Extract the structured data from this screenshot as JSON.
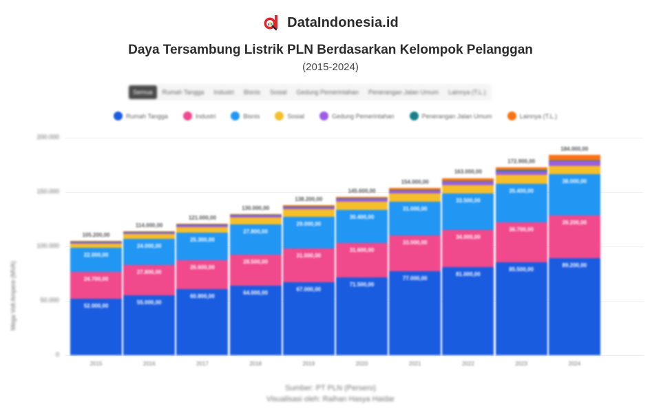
{
  "brand": {
    "name": "DataIndonesia.id",
    "logo_color": "#e3262b"
  },
  "header": {
    "title": "Daya Tersambung Listrik PLN Berdasarkan Kelompok Pelanggan",
    "subtitle": "(2015-2024)"
  },
  "tabs": [
    {
      "label": "Semua",
      "active": true
    },
    {
      "label": "Rumah Tangga",
      "active": false
    },
    {
      "label": "Industri",
      "active": false
    },
    {
      "label": "Bisnis",
      "active": false
    },
    {
      "label": "Sosial",
      "active": false
    },
    {
      "label": "Gedung Pemerintahan",
      "active": false
    },
    {
      "label": "Penerangan Jalan Umum",
      "active": false
    },
    {
      "label": "Lainnya (T.L.)",
      "active": false
    }
  ],
  "footer": {
    "source": "Sumber: PT PLN (Persero)",
    "credit": "Visualisasi oleh: Raihan Hasya Haidar"
  },
  "chart_data": {
    "type": "bar",
    "stacked": true,
    "title": "Daya Tersambung Listrik PLN Berdasarkan Kelompok Pelanggan",
    "subtitle": "(2015-2024)",
    "xlabel": "",
    "ylabel": "Mega Volt Ampere (MVA)",
    "ylim": [
      0,
      200000
    ],
    "yticks": [
      "0",
      "50.000",
      "100.000",
      "150.000",
      "200.000"
    ],
    "grid": true,
    "legend_position": "top",
    "categories": [
      "2015",
      "2016",
      "2017",
      "2018",
      "2019",
      "2020",
      "2021",
      "2022",
      "2023",
      "2024"
    ],
    "series": [
      {
        "name": "Rumah Tangga",
        "color": "#1a5ce0",
        "values": [
          52000,
          55000,
          60800,
          64000,
          67000,
          71500,
          77000,
          81000,
          85500,
          89200
        ]
      },
      {
        "name": "Industri",
        "color": "#f0498c",
        "values": [
          24700,
          27800,
          26600,
          28500,
          31000,
          31600,
          33000,
          34000,
          36700,
          39200
        ]
      },
      {
        "name": "Bisnis",
        "color": "#2196f3",
        "values": [
          22000,
          24000,
          25300,
          27800,
          29000,
          30400,
          31000,
          33500,
          35400,
          38000
        ]
      },
      {
        "name": "Sosial",
        "color": "#f5bf2a",
        "values": [
          4000,
          4400,
          5000,
          6000,
          7000,
          7500,
          7500,
          8000,
          8000,
          8000
        ]
      },
      {
        "name": "Gedung Pemerintahan",
        "color": "#9b5de5",
        "values": [
          1500,
          1600,
          1800,
          2000,
          2200,
          2400,
          2600,
          3000,
          3500,
          4000
        ]
      },
      {
        "name": "Penerangan Jalan Umum",
        "color": "#17808a",
        "values": [
          500,
          500,
          600,
          600,
          700,
          700,
          800,
          800,
          900,
          1000
        ]
      },
      {
        "name": "Lainnya (T.L.)",
        "color": "#f97316",
        "values": [
          500,
          700,
          900,
          1100,
          1300,
          1500,
          2100,
          2700,
          2900,
          4600
        ]
      }
    ],
    "totals": [
      105200,
      114000,
      121000,
      130000,
      138200,
      145600,
      154000,
      163000,
      172900,
      184000
    ],
    "total_labels": [
      "105.200,00",
      "114.000,00",
      "121.000,00",
      "130.000,00",
      "138.200,00",
      "145.600,00",
      "154.000,00",
      "163.000,00",
      "172.900,00",
      "184.000,00"
    ]
  }
}
